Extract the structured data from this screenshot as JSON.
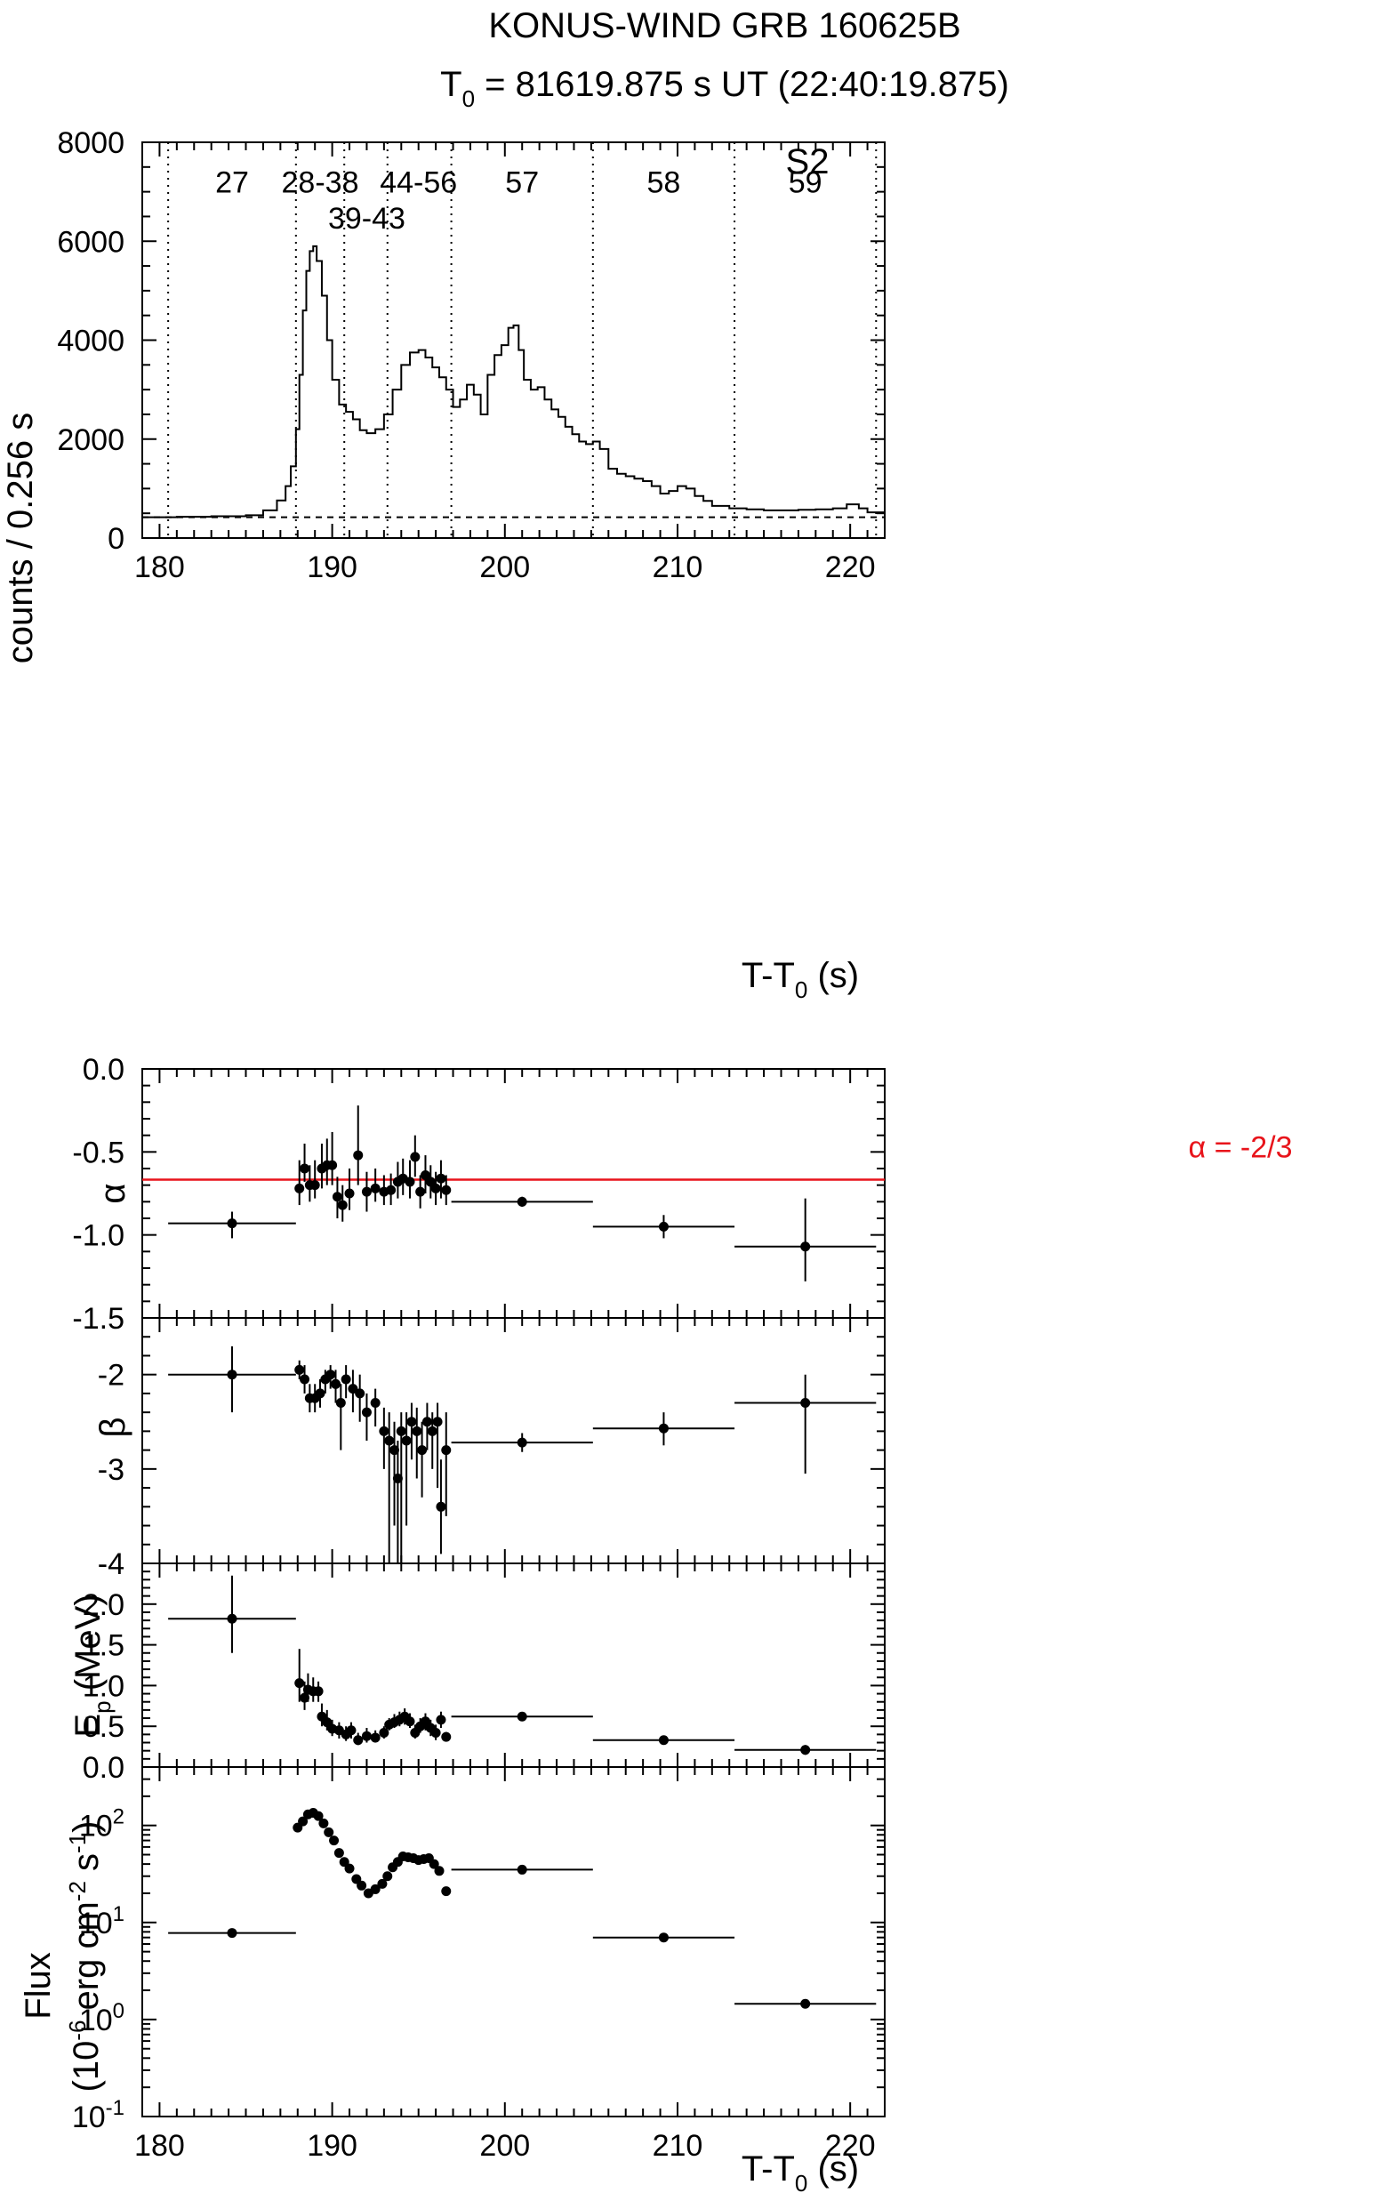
{
  "header": {
    "title": "KONUS-WIND GRB 160625B",
    "t0_prefix": "T",
    "t0_sub": "0",
    "t0_value": " = 81619.875 s UT (22:40:19.875)",
    "detector": "S2"
  },
  "colors": {
    "ink": "#000000",
    "alpha_line": "#e8141b"
  },
  "chart_data": [
    {
      "id": "lightcurve",
      "type": "line",
      "title": "KONUS-WIND GRB 160625B",
      "xlabel": "T-T0 (s)",
      "xlabel_parts": [
        "T-T",
        "0",
        " (s)"
      ],
      "ylabel": "counts / 0.256 s",
      "xlim": [
        179,
        222
      ],
      "ylim": [
        0,
        8000
      ],
      "xticks": [
        180,
        190,
        200,
        210,
        220
      ],
      "yticks": [
        0,
        2000,
        4000,
        6000,
        8000
      ],
      "background_level": 420,
      "interval_boundaries": [
        180.5,
        187.9,
        190.7,
        193.2,
        196.9,
        205.1,
        213.3,
        221.5
      ],
      "interval_labels": [
        {
          "text": "27",
          "x": 184.2,
          "y": 7200
        },
        {
          "text": "28-38",
          "x": 189.3,
          "y": 7200
        },
        {
          "text": "39-43",
          "x": 192.0,
          "y": 6470
        },
        {
          "text": "44-56",
          "x": 195.0,
          "y": 7200
        },
        {
          "text": "57",
          "x": 201.0,
          "y": 7200
        },
        {
          "text": "58",
          "x": 209.2,
          "y": 7200
        },
        {
          "text": "59",
          "x": 217.4,
          "y": 7200
        }
      ],
      "curve": {
        "name": "S2 counts",
        "x": [
          179.0,
          181.0,
          183.0,
          185.0,
          186.0,
          186.8,
          187.3,
          187.6,
          187.9,
          188.1,
          188.3,
          188.5,
          188.7,
          188.9,
          189.1,
          189.4,
          189.7,
          190.0,
          190.4,
          190.8,
          191.2,
          191.6,
          192.0,
          192.5,
          193.0,
          193.5,
          194.0,
          194.5,
          195.0,
          195.4,
          195.8,
          196.2,
          196.6,
          197.0,
          197.4,
          197.8,
          198.2,
          198.6,
          199.0,
          199.4,
          199.8,
          200.2,
          200.5,
          200.8,
          201.1,
          201.5,
          201.9,
          202.3,
          202.7,
          203.1,
          203.5,
          203.9,
          204.3,
          204.7,
          205.1,
          205.5,
          206.0,
          206.5,
          207.0,
          207.5,
          208.0,
          208.5,
          209.0,
          209.5,
          210.0,
          210.5,
          211.0,
          211.5,
          212.0,
          213.0,
          214.0,
          215.0,
          216.0,
          217.0,
          218.0,
          219.0,
          219.8,
          220.5,
          221.0,
          222.0
        ],
        "y": [
          420,
          430,
          440,
          460,
          560,
          760,
          1050,
          1450,
          2200,
          3300,
          4600,
          5400,
          5800,
          5900,
          5600,
          4900,
          4000,
          3200,
          2700,
          2550,
          2400,
          2180,
          2120,
          2200,
          2500,
          3000,
          3500,
          3750,
          3800,
          3650,
          3450,
          3250,
          3000,
          2650,
          2800,
          3100,
          2900,
          2500,
          3300,
          3700,
          3900,
          4250,
          4300,
          3800,
          3200,
          3000,
          3050,
          2800,
          2600,
          2450,
          2250,
          2100,
          1950,
          1900,
          1950,
          1800,
          1400,
          1300,
          1250,
          1200,
          1150,
          1050,
          900,
          950,
          1050,
          1000,
          850,
          750,
          650,
          600,
          580,
          560,
          560,
          570,
          580,
          600,
          680,
          600,
          520,
          480
        ]
      }
    },
    {
      "id": "alpha",
      "type": "scatter",
      "ylabel": "α",
      "xlim": [
        179,
        222
      ],
      "ylim": [
        -1.5,
        0.0
      ],
      "yticks": [
        -1.5,
        -1.0,
        -0.5,
        0.0
      ],
      "ytick_labels": [
        "-1.5",
        "-1.0",
        "-0.5",
        "0.0"
      ],
      "reference_line": {
        "y": -0.667,
        "label": "α = -2/3"
      },
      "points": [
        {
          "x": 184.2,
          "y": -0.93,
          "xlo": 180.5,
          "xhi": 187.9,
          "ylo": -1.02,
          "yhi": -0.86
        },
        {
          "x": 188.1,
          "y": -0.72,
          "ylo": -0.82,
          "yhi": -0.55
        },
        {
          "x": 188.4,
          "y": -0.6,
          "ylo": -0.68,
          "yhi": -0.45
        },
        {
          "x": 188.7,
          "y": -0.7,
          "ylo": -0.8,
          "yhi": -0.58
        },
        {
          "x": 189.0,
          "y": -0.7,
          "ylo": -0.78,
          "yhi": -0.55
        },
        {
          "x": 189.4,
          "y": -0.6,
          "ylo": -0.72,
          "yhi": -0.45
        },
        {
          "x": 189.7,
          "y": -0.58,
          "ylo": -0.7,
          "yhi": -0.42
        },
        {
          "x": 190.0,
          "y": -0.58,
          "ylo": -0.7,
          "yhi": -0.38
        },
        {
          "x": 190.3,
          "y": -0.77,
          "ylo": -0.9,
          "yhi": -0.65
        },
        {
          "x": 190.6,
          "y": -0.82,
          "ylo": -0.92,
          "yhi": -0.7
        },
        {
          "x": 191.0,
          "y": -0.75,
          "ylo": -0.85,
          "yhi": -0.6
        },
        {
          "x": 191.5,
          "y": -0.52,
          "ylo": -0.7,
          "yhi": -0.22
        },
        {
          "x": 192.0,
          "y": -0.74,
          "ylo": -0.86,
          "yhi": -0.62
        },
        {
          "x": 192.5,
          "y": -0.72,
          "ylo": -0.8,
          "yhi": -0.6
        },
        {
          "x": 193.0,
          "y": -0.74,
          "ylo": -0.82,
          "yhi": -0.64
        },
        {
          "x": 193.4,
          "y": -0.73,
          "ylo": -0.82,
          "yhi": -0.63
        },
        {
          "x": 193.8,
          "y": -0.68,
          "ylo": -0.78,
          "yhi": -0.56
        },
        {
          "x": 194.1,
          "y": -0.66,
          "ylo": -0.76,
          "yhi": -0.54
        },
        {
          "x": 194.5,
          "y": -0.68,
          "ylo": -0.78,
          "yhi": -0.55
        },
        {
          "x": 194.8,
          "y": -0.53,
          "ylo": -0.65,
          "yhi": -0.4
        },
        {
          "x": 195.1,
          "y": -0.74,
          "ylo": -0.84,
          "yhi": -0.64
        },
        {
          "x": 195.4,
          "y": -0.64,
          "ylo": -0.75,
          "yhi": -0.52
        },
        {
          "x": 195.7,
          "y": -0.68,
          "ylo": -0.78,
          "yhi": -0.58
        },
        {
          "x": 196.0,
          "y": -0.72,
          "ylo": -0.82,
          "yhi": -0.62
        },
        {
          "x": 196.3,
          "y": -0.66,
          "ylo": -0.78,
          "yhi": -0.55
        },
        {
          "x": 196.6,
          "y": -0.73,
          "ylo": -0.82,
          "yhi": -0.64
        },
        {
          "x": 201.0,
          "y": -0.8,
          "xlo": 196.9,
          "xhi": 205.1,
          "ylo": -0.83,
          "yhi": -0.77
        },
        {
          "x": 209.2,
          "y": -0.95,
          "xlo": 205.1,
          "xhi": 213.3,
          "ylo": -1.02,
          "yhi": -0.88
        },
        {
          "x": 217.4,
          "y": -1.07,
          "xlo": 213.3,
          "xhi": 221.5,
          "ylo": -1.28,
          "yhi": -0.78
        }
      ]
    },
    {
      "id": "beta",
      "type": "scatter",
      "ylabel": "β",
      "xlim": [
        179,
        222
      ],
      "ylim": [
        -4.0,
        -1.4
      ],
      "yticks": [
        -4,
        -3,
        -2
      ],
      "ytick_labels": [
        "-4",
        "-3",
        "-2"
      ],
      "points": [
        {
          "x": 184.2,
          "y": -2.0,
          "xlo": 180.5,
          "xhi": 187.9,
          "ylo": -2.4,
          "yhi": -1.7
        },
        {
          "x": 188.1,
          "y": -1.95,
          "ylo": -2.05,
          "yhi": -1.85
        },
        {
          "x": 188.4,
          "y": -2.05,
          "ylo": -2.2,
          "yhi": -1.9
        },
        {
          "x": 188.7,
          "y": -2.25,
          "ylo": -2.4,
          "yhi": -2.1
        },
        {
          "x": 189.0,
          "y": -2.25,
          "ylo": -2.4,
          "yhi": -2.1
        },
        {
          "x": 189.3,
          "y": -2.2,
          "ylo": -2.35,
          "yhi": -2.05
        },
        {
          "x": 189.6,
          "y": -2.05,
          "ylo": -2.2,
          "yhi": -1.95
        },
        {
          "x": 189.9,
          "y": -2.0,
          "ylo": -2.15,
          "yhi": -1.9
        },
        {
          "x": 190.2,
          "y": -2.1,
          "ylo": -2.3,
          "yhi": -1.95
        },
        {
          "x": 190.5,
          "y": -2.3,
          "ylo": -2.8,
          "yhi": -2.1
        },
        {
          "x": 190.8,
          "y": -2.05,
          "ylo": -2.25,
          "yhi": -1.9
        },
        {
          "x": 191.2,
          "y": -2.15,
          "ylo": -2.4,
          "yhi": -1.95
        },
        {
          "x": 191.6,
          "y": -2.2,
          "ylo": -2.5,
          "yhi": -2.0
        },
        {
          "x": 192.0,
          "y": -2.4,
          "ylo": -2.7,
          "yhi": -2.2
        },
        {
          "x": 192.5,
          "y": -2.3,
          "ylo": -2.55,
          "yhi": -2.15
        },
        {
          "x": 193.0,
          "y": -2.6,
          "ylo": -3.0,
          "yhi": -2.35
        },
        {
          "x": 193.3,
          "y": -2.7,
          "ylo": -4.0,
          "yhi": -2.4
        },
        {
          "x": 193.6,
          "y": -2.8,
          "ylo": -3.6,
          "yhi": -2.5
        },
        {
          "x": 193.8,
          "y": -3.1,
          "ylo": -4.0,
          "yhi": -2.7
        },
        {
          "x": 194.0,
          "y": -2.6,
          "ylo": -4.0,
          "yhi": -2.4
        },
        {
          "x": 194.3,
          "y": -2.7,
          "ylo": -3.6,
          "yhi": -2.4
        },
        {
          "x": 194.6,
          "y": -2.5,
          "ylo": -2.9,
          "yhi": -2.3
        },
        {
          "x": 194.9,
          "y": -2.6,
          "ylo": -3.1,
          "yhi": -2.35
        },
        {
          "x": 195.2,
          "y": -2.8,
          "ylo": -3.3,
          "yhi": -2.5
        },
        {
          "x": 195.5,
          "y": -2.5,
          "ylo": -2.8,
          "yhi": -2.3
        },
        {
          "x": 195.8,
          "y": -2.6,
          "ylo": -3.0,
          "yhi": -2.4
        },
        {
          "x": 196.1,
          "y": -2.5,
          "ylo": -3.2,
          "yhi": -2.3
        },
        {
          "x": 196.3,
          "y": -3.4,
          "ylo": -3.9,
          "yhi": -2.9
        },
        {
          "x": 196.6,
          "y": -2.8,
          "ylo": -3.5,
          "yhi": -2.4
        },
        {
          "x": 201.0,
          "y": -2.72,
          "xlo": 196.9,
          "xhi": 205.1,
          "ylo": -2.82,
          "yhi": -2.62
        },
        {
          "x": 209.2,
          "y": -2.57,
          "xlo": 205.1,
          "xhi": 213.3,
          "ylo": -2.75,
          "yhi": -2.4
        },
        {
          "x": 217.4,
          "y": -2.3,
          "xlo": 213.3,
          "xhi": 221.5,
          "ylo": -3.05,
          "yhi": -2.0
        }
      ]
    },
    {
      "id": "epeak",
      "type": "scatter",
      "ylabel": "Ep (MeV)",
      "ylabel_parts": [
        "E",
        "p",
        " (MeV)"
      ],
      "xlim": [
        179,
        222
      ],
      "ylim": [
        0.0,
        2.5
      ],
      "yticks": [
        0.0,
        0.5,
        1.0,
        1.5,
        2.0
      ],
      "ytick_labels": [
        "0.0",
        "0.5",
        "1.0",
        "1.5",
        "2.0"
      ],
      "points": [
        {
          "x": 184.2,
          "y": 1.82,
          "xlo": 180.5,
          "xhi": 187.9,
          "ylo": 1.4,
          "yhi": 2.35
        },
        {
          "x": 188.1,
          "y": 1.03,
          "ylo": 0.8,
          "yhi": 1.45
        },
        {
          "x": 188.4,
          "y": 0.85,
          "ylo": 0.7,
          "yhi": 1.05
        },
        {
          "x": 188.6,
          "y": 0.95,
          "ylo": 0.8,
          "yhi": 1.15
        },
        {
          "x": 188.9,
          "y": 0.93,
          "ylo": 0.8,
          "yhi": 1.1
        },
        {
          "x": 189.2,
          "y": 0.93,
          "ylo": 0.8,
          "yhi": 1.05
        },
        {
          "x": 189.4,
          "y": 0.62,
          "ylo": 0.5,
          "yhi": 0.78
        },
        {
          "x": 189.7,
          "y": 0.55,
          "ylo": 0.45,
          "yhi": 0.7
        },
        {
          "x": 190.0,
          "y": 0.47,
          "ylo": 0.38,
          "yhi": 0.58
        },
        {
          "x": 190.4,
          "y": 0.45,
          "ylo": 0.35,
          "yhi": 0.55
        },
        {
          "x": 190.8,
          "y": 0.4,
          "ylo": 0.32,
          "yhi": 0.5
        },
        {
          "x": 191.1,
          "y": 0.45,
          "ylo": 0.35,
          "yhi": 0.55
        },
        {
          "x": 191.5,
          "y": 0.33,
          "ylo": 0.27,
          "yhi": 0.42
        },
        {
          "x": 192.0,
          "y": 0.38,
          "ylo": 0.3,
          "yhi": 0.48
        },
        {
          "x": 192.5,
          "y": 0.36,
          "ylo": 0.3,
          "yhi": 0.45
        },
        {
          "x": 193.0,
          "y": 0.42,
          "ylo": 0.35,
          "yhi": 0.5
        },
        {
          "x": 193.3,
          "y": 0.52,
          "ylo": 0.45,
          "yhi": 0.6
        },
        {
          "x": 193.6,
          "y": 0.55,
          "ylo": 0.48,
          "yhi": 0.65
        },
        {
          "x": 193.9,
          "y": 0.58,
          "ylo": 0.5,
          "yhi": 0.68
        },
        {
          "x": 194.2,
          "y": 0.62,
          "ylo": 0.52,
          "yhi": 0.72
        },
        {
          "x": 194.5,
          "y": 0.56,
          "ylo": 0.48,
          "yhi": 0.66
        },
        {
          "x": 194.8,
          "y": 0.42,
          "ylo": 0.35,
          "yhi": 0.52
        },
        {
          "x": 195.1,
          "y": 0.5,
          "ylo": 0.42,
          "yhi": 0.6
        },
        {
          "x": 195.4,
          "y": 0.56,
          "ylo": 0.45,
          "yhi": 0.66
        },
        {
          "x": 195.7,
          "y": 0.48,
          "ylo": 0.38,
          "yhi": 0.58
        },
        {
          "x": 196.0,
          "y": 0.42,
          "ylo": 0.33,
          "yhi": 0.52
        },
        {
          "x": 196.3,
          "y": 0.58,
          "ylo": 0.48,
          "yhi": 0.68
        },
        {
          "x": 196.6,
          "y": 0.37,
          "ylo": 0.32,
          "yhi": 0.43
        },
        {
          "x": 201.0,
          "y": 0.62,
          "xlo": 196.9,
          "xhi": 205.1,
          "ylo": 0.59,
          "yhi": 0.65
        },
        {
          "x": 209.2,
          "y": 0.33,
          "xlo": 205.1,
          "xhi": 213.3,
          "ylo": 0.3,
          "yhi": 0.36
        },
        {
          "x": 217.4,
          "y": 0.21,
          "xlo": 213.3,
          "xhi": 221.5,
          "ylo": 0.15,
          "yhi": 0.27
        }
      ]
    },
    {
      "id": "flux",
      "type": "scatter",
      "ylabel": "Flux (10^-6 erg cm^-2 s^-1)",
      "ylabel_line1": "Flux",
      "ylabel_line2_parts": [
        "(10",
        "-6",
        " erg cm",
        "-2",
        " s",
        "-1",
        ")"
      ],
      "yscale": "log",
      "xlabel": "T-T0 (s)",
      "xlabel_parts": [
        "T-T",
        "0",
        " (s)"
      ],
      "xlim": [
        179,
        222
      ],
      "ylim": [
        0.1,
        400
      ],
      "xticks": [
        180,
        190,
        200,
        210,
        220
      ],
      "yticks_log": [
        {
          "value": 0.1,
          "base": "10",
          "exp": "-1"
        },
        {
          "value": 1,
          "base": "10",
          "exp": "0"
        },
        {
          "value": 10,
          "base": "10",
          "exp": "1"
        },
        {
          "value": 100,
          "base": "10",
          "exp": "2"
        }
      ],
      "points": [
        {
          "x": 184.2,
          "y": 7.8,
          "xlo": 180.5,
          "xhi": 187.9
        },
        {
          "x": 188.0,
          "y": 95
        },
        {
          "x": 188.3,
          "y": 110
        },
        {
          "x": 188.6,
          "y": 130
        },
        {
          "x": 188.9,
          "y": 135
        },
        {
          "x": 189.2,
          "y": 125
        },
        {
          "x": 189.5,
          "y": 105
        },
        {
          "x": 189.8,
          "y": 85
        },
        {
          "x": 190.1,
          "y": 70
        },
        {
          "x": 190.4,
          "y": 52
        },
        {
          "x": 190.7,
          "y": 42
        },
        {
          "x": 191.0,
          "y": 36
        },
        {
          "x": 191.4,
          "y": 28
        },
        {
          "x": 191.7,
          "y": 24
        },
        {
          "x": 192.1,
          "y": 20
        },
        {
          "x": 192.5,
          "y": 22
        },
        {
          "x": 192.9,
          "y": 25
        },
        {
          "x": 193.2,
          "y": 30
        },
        {
          "x": 193.5,
          "y": 37
        },
        {
          "x": 193.8,
          "y": 42
        },
        {
          "x": 194.1,
          "y": 48
        },
        {
          "x": 194.4,
          "y": 47
        },
        {
          "x": 194.7,
          "y": 46
        },
        {
          "x": 195.0,
          "y": 44
        },
        {
          "x": 195.3,
          "y": 45
        },
        {
          "x": 195.6,
          "y": 46
        },
        {
          "x": 195.9,
          "y": 40
        },
        {
          "x": 196.2,
          "y": 34
        },
        {
          "x": 196.6,
          "y": 21
        },
        {
          "x": 201.0,
          "y": 35,
          "xlo": 196.9,
          "xhi": 205.1
        },
        {
          "x": 209.2,
          "y": 7.0,
          "xlo": 205.1,
          "xhi": 213.3
        },
        {
          "x": 217.4,
          "y": 1.45,
          "xlo": 213.3,
          "xhi": 221.5
        }
      ]
    }
  ]
}
